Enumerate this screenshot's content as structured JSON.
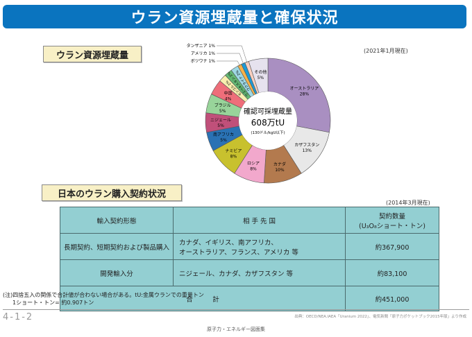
{
  "title": "ウラン資源埋蔵量と確保状況",
  "section1": {
    "label": "ウラン資源埋蔵量",
    "as_of": "(2021年1月現在)"
  },
  "chart_data": {
    "type": "pie",
    "donut": true,
    "title": "ウラン資源埋蔵量",
    "center_text": [
      "確認可採埋蔵量",
      "608万tU",
      "(130ドル/kgU以下)"
    ],
    "unit": "%",
    "slices": [
      {
        "label": "オーストラリア",
        "value": 28,
        "color": "#a98fc1"
      },
      {
        "label": "カザフスタン",
        "value": 13,
        "color": "#e8e8e8"
      },
      {
        "label": "カナダ",
        "value": 10,
        "color": "#b37a4e"
      },
      {
        "label": "ロシア",
        "value": 8,
        "color": "#f2a8cc"
      },
      {
        "label": "ナミビア",
        "value": 8,
        "color": "#c8c12e"
      },
      {
        "label": "南アフリカ",
        "value": 5,
        "color": "#2a72b4"
      },
      {
        "label": "ニジェール",
        "value": 5,
        "color": "#c0507a"
      },
      {
        "label": "ブラジル",
        "value": 5,
        "color": "#98d49a"
      },
      {
        "label": "中国",
        "value": 4,
        "color": "#ee6e7a"
      },
      {
        "label": "モンゴル",
        "value": 2,
        "color": "#f8f0b0"
      },
      {
        "label": "ウズベキスタン",
        "value": 2,
        "color": "#64b874"
      },
      {
        "label": "ウクライナ",
        "value": 2,
        "color": "#9ed8e4"
      },
      {
        "label": "ボツワナ",
        "value": 1,
        "color": "#f6b24a"
      },
      {
        "label": "アメリカ",
        "value": 1,
        "color": "#1e9ad6"
      },
      {
        "label": "タンザニア",
        "value": 1,
        "color": "#f9d0c0"
      },
      {
        "label": "その他",
        "value": 5,
        "color": "#e6e2ee"
      }
    ],
    "callouts": [
      "タンザニア 1%",
      "アメリカ 1%",
      "ボツワナ 1%"
    ]
  },
  "section2": {
    "label": "日本のウラン購入契約状況",
    "as_of": "(2014年3月現在)"
  },
  "table": {
    "headers": [
      "輸入契約形態",
      "相 手 先 国",
      "契約数量",
      "(U₃O₈ショート・トン)"
    ],
    "rows": [
      {
        "type": "長期契約、短期契約および製品購入",
        "countries": [
          "カナダ、イギリス、南アフリカ、",
          "オーストラリア、フランス、アメリカ 等"
        ],
        "amount": "約367,900"
      },
      {
        "type": "開発輸入分",
        "countries": [
          "ニジェール、カナダ、カザフスタン 等"
        ],
        "amount": "約83,100"
      }
    ],
    "total_label": "合　　　計",
    "total_amount": "約451,000"
  },
  "notes": [
    "(注)四捨五入の関係で合計値が合わない場合がある。tU:金属ウランでの重量トン",
    "1ショート・トン= 約0.907トン"
  ],
  "page_number": "4-1-2",
  "source": "出典：OECD/NEA.IAEA「Uranium 2022」、電気新聞「原子力ポケットブック2015年版」より作成",
  "footer": "原子力・エネルギー図面集"
}
